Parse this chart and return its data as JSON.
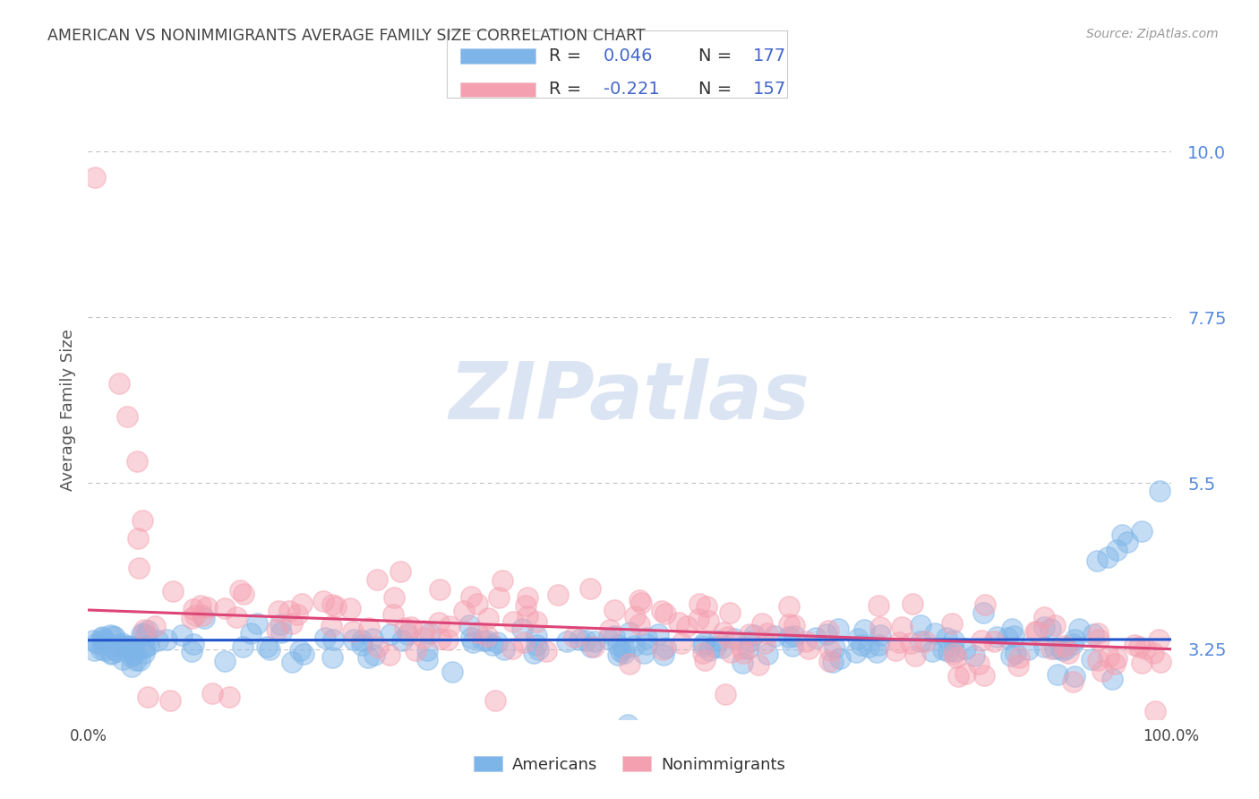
{
  "title": "AMERICAN VS NONIMMIGRANTS AVERAGE FAMILY SIZE CORRELATION CHART",
  "source": "Source: ZipAtlas.com",
  "ylabel": "Average Family Size",
  "watermark": "ZIPatlas",
  "yaxis_ticks": [
    3.25,
    5.5,
    7.75,
    10.0
  ],
  "ymin": 2.3,
  "ymax": 10.7,
  "xmin": 0.0,
  "xmax": 1.0,
  "americans_color": "#7EB5E8",
  "nonimmigrants_color": "#F5A0B0",
  "trend_american_color": "#2255CC",
  "trend_nonimmigrant_color": "#DD4477",
  "R_american": 0.046,
  "N_american": 177,
  "R_nonimmigrant": -0.221,
  "N_nonimmigrant": 157,
  "legend_label_1": "Americans",
  "legend_label_2": "Nonimmigrants",
  "background_color": "#FFFFFF",
  "grid_color": "#BBBBBB",
  "title_color": "#444444",
  "source_color": "#999999",
  "axis_label_color": "#5588DD",
  "legend_text_color": "#4466CC",
  "legend_rn_dark": "#333333"
}
